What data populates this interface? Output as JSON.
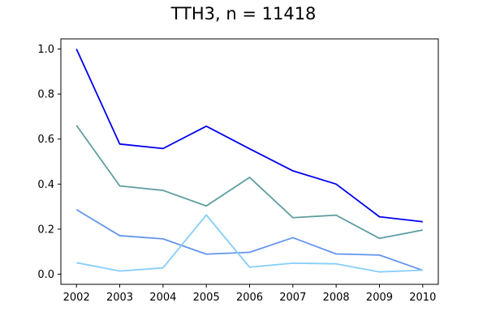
{
  "chart_data": {
    "type": "line",
    "title": "TTH3, n = 11418",
    "xlabel": "",
    "ylabel": "",
    "x": [
      "2002",
      "2003",
      "2004",
      "2005",
      "2006",
      "2007",
      "2008",
      "2009",
      "2010"
    ],
    "xlim": [
      2002,
      2010
    ],
    "ylim": [
      0.0,
      1.0
    ],
    "yticks": [
      "0.0",
      "0.2",
      "0.4",
      "0.6",
      "0.8",
      "1.0"
    ],
    "grid": false,
    "legend": "none",
    "series": [
      {
        "color": "#0000ee",
        "values": [
          1.0,
          0.578,
          0.558,
          0.657,
          0.557,
          0.459,
          0.4,
          0.255,
          0.233
        ]
      },
      {
        "color": "#5f9ea0",
        "values": [
          0.661,
          0.392,
          0.372,
          0.303,
          0.43,
          0.251,
          0.262,
          0.159,
          0.196
        ]
      },
      {
        "color": "#6495ed",
        "values": [
          0.287,
          0.171,
          0.157,
          0.089,
          0.097,
          0.162,
          0.09,
          0.085,
          0.017
        ]
      },
      {
        "color": "#87cefa",
        "values": [
          0.051,
          0.014,
          0.028,
          0.263,
          0.031,
          0.049,
          0.046,
          0.01,
          0.018
        ]
      }
    ]
  }
}
